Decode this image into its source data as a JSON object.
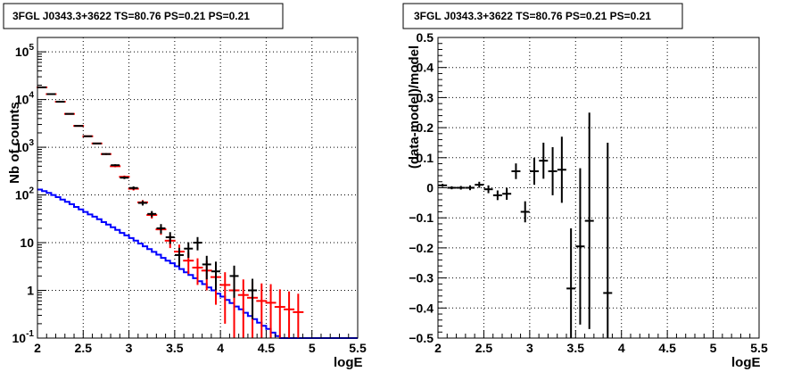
{
  "chart_data": [
    {
      "type": "line",
      "title": "3FGL J0343.3+3622 TS=80.76 PS=0.21 PS=0.21",
      "xlabel": "logE",
      "ylabel": "Nb of counts",
      "xlim": [
        2,
        5.5
      ],
      "ylim": [
        0.1,
        200000
      ],
      "yscale": "log",
      "grid": true,
      "x_ticks": [
        "2",
        "2.5",
        "3",
        "3.5",
        "4",
        "4.5",
        "5",
        "5.5"
      ],
      "y_ticks": [
        "10^-1",
        "1",
        "10",
        "10^2",
        "10^3",
        "10^4",
        "10^5"
      ],
      "series": [
        {
          "role": "total model",
          "color": "#ff0000",
          "x": [
            2.05,
            2.15,
            2.25,
            2.35,
            2.45,
            2.55,
            2.65,
            2.75,
            2.85,
            2.95,
            3.05,
            3.15,
            3.25,
            3.35,
            3.45,
            3.55,
            3.65,
            3.75,
            3.85,
            3.95,
            4.05,
            4.15,
            4.25,
            4.35,
            4.45,
            4.55,
            4.65,
            4.75,
            4.85
          ],
          "y": [
            18000,
            13000,
            9000,
            5000,
            2800,
            1700,
            1200,
            720,
            400,
            240,
            135,
            70,
            38,
            19,
            11,
            6.5,
            4.2,
            3.0,
            2.6,
            1.9,
            1.3,
            1.0,
            0.8,
            0.7,
            0.6,
            0.55,
            0.45,
            0.4,
            0.35
          ],
          "yerr_low": [
            200,
            150,
            110,
            80,
            60,
            45,
            35,
            28,
            20,
            15,
            11,
            8,
            6,
            4.4,
            3.3,
            2.6,
            2.0,
            1.7,
            1.6,
            1.4,
            1.1,
            1.0,
            0.8,
            0.7,
            0.6,
            0.55,
            0.45,
            0.4,
            0.35
          ],
          "yerr_high": [
            200,
            150,
            110,
            80,
            60,
            45,
            35,
            28,
            20,
            15,
            11,
            8,
            6,
            4.4,
            3.3,
            2.6,
            2.0,
            1.7,
            1.6,
            1.4,
            1.1,
            1.0,
            0.9,
            0.8,
            0.8,
            0.8,
            0.6,
            0.55,
            0.5
          ]
        },
        {
          "role": "source model",
          "color": "#0000ff",
          "edges": [
            2.0,
            2.05,
            2.1,
            2.15,
            2.2,
            2.25,
            2.3,
            2.35,
            2.4,
            2.45,
            2.5,
            2.55,
            2.6,
            2.65,
            2.7,
            2.75,
            2.8,
            2.85,
            2.9,
            2.95,
            3.0,
            3.05,
            3.1,
            3.15,
            3.2,
            3.25,
            3.3,
            3.35,
            3.4,
            3.45,
            3.5,
            3.55,
            3.6,
            3.65,
            3.7,
            3.75,
            3.8,
            3.85,
            3.9,
            3.95,
            4.0,
            4.05,
            4.1,
            4.15,
            4.2,
            4.25,
            4.3,
            4.35,
            4.4,
            4.45,
            4.5,
            4.55,
            4.6,
            4.65,
            4.7,
            4.75,
            4.8,
            4.85,
            4.9,
            4.95,
            5.0,
            5.5
          ],
          "values": [
            130,
            120,
            110,
            100,
            90,
            80,
            72,
            64,
            56,
            50,
            44,
            39,
            35,
            31,
            27,
            24,
            21,
            18.5,
            16,
            14.2,
            12.5,
            11,
            9.6,
            8.4,
            7.3,
            6.4,
            5.6,
            4.8,
            4.2,
            3.7,
            3.2,
            2.8,
            2.4,
            2.1,
            1.8,
            1.55,
            1.35,
            1.15,
            1.0,
            0.85,
            0.74,
            0.63,
            0.54,
            0.46,
            0.4,
            0.34,
            0.29,
            0.25,
            0.21,
            0.18,
            0.155,
            0.13,
            0.11,
            0.1,
            0.1,
            0.1,
            0.1,
            0.1,
            0.1,
            0.1,
            0.1
          ]
        },
        {
          "role": "data",
          "color": "#000000",
          "x": [
            2.05,
            2.15,
            2.25,
            2.35,
            2.45,
            2.55,
            2.65,
            2.75,
            2.85,
            2.95,
            3.05,
            3.15,
            3.25,
            3.35,
            3.45,
            3.55,
            3.65,
            3.75,
            3.85,
            3.95,
            4.15,
            4.35
          ],
          "y": [
            18000,
            13000,
            9000,
            5000,
            2800,
            1700,
            1200,
            720,
            420,
            230,
            140,
            68,
            40,
            20,
            13,
            5.5,
            7.5,
            10,
            3.5,
            2.5,
            2.0,
            1.0
          ],
          "yerr_low": [
            150,
            120,
            100,
            75,
            55,
            42,
            35,
            27,
            20,
            15,
            11,
            8,
            6,
            4.5,
            3.6,
            2.3,
            2.7,
            3.1,
            1.8,
            1.5,
            1.3,
            0.75
          ],
          "yerr_high": [
            150,
            120,
            100,
            75,
            55,
            42,
            35,
            27,
            20,
            15,
            11,
            8,
            6,
            4.5,
            3.6,
            2.3,
            2.7,
            3.1,
            1.8,
            1.5,
            1.3,
            0.75
          ]
        }
      ]
    },
    {
      "type": "scatter",
      "title": "3FGL J0343.3+3622 TS=80.76 PS=0.21 PS=0.21",
      "xlabel": "logE",
      "ylabel": "(data-model)/model",
      "xlim": [
        2,
        5.5
      ],
      "ylim": [
        -0.5,
        0.5
      ],
      "grid": true,
      "x_ticks": [
        "2",
        "2.5",
        "3",
        "3.5",
        "4",
        "4.5",
        "5",
        "5.5"
      ],
      "y_ticks": [
        "-0.5",
        "-0.4",
        "-0.3",
        "-0.2",
        "-0.1",
        "0",
        "0.1",
        "0.2",
        "0.3",
        "0.4",
        "0.5"
      ],
      "series": [
        {
          "color": "#000000",
          "x": [
            2.05,
            2.15,
            2.25,
            2.35,
            2.45,
            2.55,
            2.65,
            2.75,
            2.85,
            2.95,
            3.05,
            3.15,
            3.25,
            3.35,
            3.45,
            3.55,
            3.65,
            3.85
          ],
          "y": [
            0.008,
            0.0,
            0.0,
            0.0,
            0.01,
            -0.005,
            -0.025,
            -0.02,
            0.055,
            -0.08,
            0.055,
            0.09,
            0.055,
            0.06,
            -0.335,
            -0.195,
            -0.11,
            -0.35
          ],
          "yerr": [
            0.005,
            0.005,
            0.006,
            0.008,
            0.01,
            0.013,
            0.016,
            0.02,
            0.026,
            0.035,
            0.045,
            0.06,
            0.08,
            0.11,
            0.2,
            0.26,
            0.36,
            0.5
          ]
        }
      ]
    }
  ]
}
